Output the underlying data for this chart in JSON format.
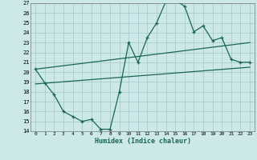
{
  "title": "",
  "xlabel": "Humidex (Indice chaleur)",
  "background_color": "#cce8e8",
  "grid_color": "#aacccc",
  "line_color": "#1a6655",
  "xlim": [
    -0.5,
    23.5
  ],
  "ylim": [
    14,
    27
  ],
  "xticks": [
    0,
    1,
    2,
    3,
    4,
    5,
    6,
    7,
    8,
    9,
    10,
    11,
    12,
    13,
    14,
    15,
    16,
    17,
    18,
    19,
    20,
    21,
    22,
    23
  ],
  "yticks": [
    14,
    15,
    16,
    17,
    18,
    19,
    20,
    21,
    22,
    23,
    24,
    25,
    26,
    27
  ],
  "line1_x": [
    0,
    1,
    2,
    3,
    4,
    5,
    6,
    7,
    8,
    9,
    10,
    11,
    12,
    13,
    14,
    15,
    16,
    17,
    18,
    19,
    20,
    21,
    22,
    23
  ],
  "line1_y": [
    20.3,
    18.9,
    17.7,
    16.0,
    15.5,
    15.0,
    15.2,
    14.2,
    14.2,
    18.0,
    23.0,
    21.0,
    23.5,
    25.0,
    27.2,
    27.3,
    26.7,
    24.1,
    24.7,
    23.2,
    23.5,
    21.3,
    21.0,
    21.0
  ],
  "line2_x": [
    0,
    23
  ],
  "line2_y": [
    20.3,
    23.0
  ],
  "line3_x": [
    0,
    23
  ],
  "line3_y": [
    18.8,
    20.5
  ]
}
